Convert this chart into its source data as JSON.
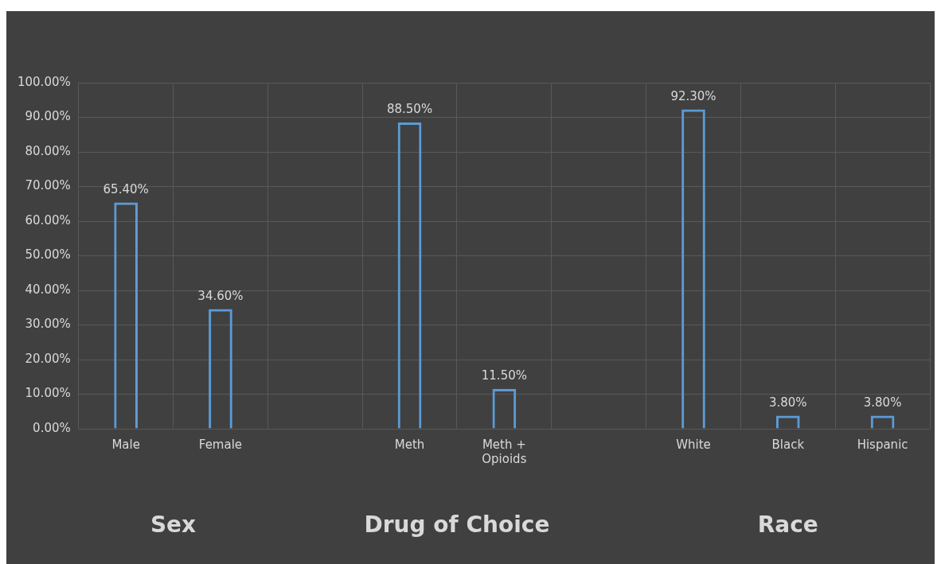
{
  "chart_data": {
    "type": "bar",
    "categories": [
      "Male",
      "Female",
      null,
      "Meth",
      "Meth + Opioids",
      null,
      "White",
      "Black",
      "Hispanic"
    ],
    "values": [
      65.4,
      34.6,
      null,
      88.5,
      11.5,
      null,
      92.3,
      3.8,
      3.8
    ],
    "value_labels": [
      "65.40%",
      "34.60%",
      null,
      "88.50%",
      "11.50%",
      null,
      "92.30%",
      "3.80%",
      "3.80%"
    ],
    "color": "#5b9bd5",
    "ylim": [
      0,
      100
    ],
    "yticks": [
      {
        "value": 0,
        "label": "0.00%"
      },
      {
        "value": 10,
        "label": "10.00%"
      },
      {
        "value": 20,
        "label": "20.00%"
      },
      {
        "value": 30,
        "label": "30.00%"
      },
      {
        "value": 40,
        "label": "40.00%"
      },
      {
        "value": 50,
        "label": "50.00%"
      },
      {
        "value": 60,
        "label": "60.00%"
      },
      {
        "value": 70,
        "label": "70.00%"
      },
      {
        "value": 80,
        "label": "80.00%"
      },
      {
        "value": 90,
        "label": "90.00%"
      },
      {
        "value": 100,
        "label": "100.00%"
      }
    ],
    "grid": true,
    "legend": false,
    "annotations": [
      "Sex",
      "Drug of Choice",
      "Race"
    ]
  }
}
